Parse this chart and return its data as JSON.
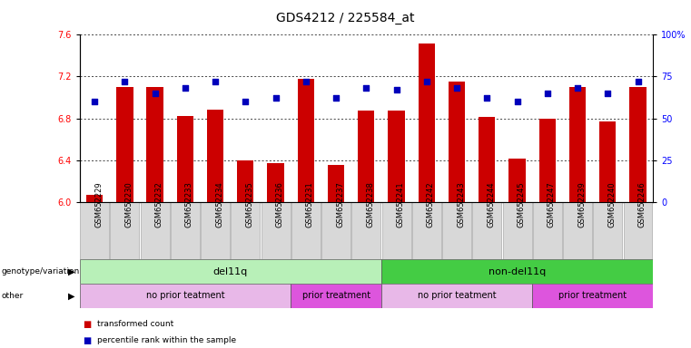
{
  "title": "GDS4212 / 225584_at",
  "samples": [
    "GSM652229",
    "GSM652230",
    "GSM652232",
    "GSM652233",
    "GSM652234",
    "GSM652235",
    "GSM652236",
    "GSM652231",
    "GSM652237",
    "GSM652238",
    "GSM652241",
    "GSM652242",
    "GSM652243",
    "GSM652244",
    "GSM652245",
    "GSM652247",
    "GSM652239",
    "GSM652240",
    "GSM652246"
  ],
  "bar_values": [
    6.07,
    7.1,
    7.1,
    6.82,
    6.88,
    6.4,
    6.37,
    7.18,
    6.35,
    6.87,
    6.87,
    7.52,
    7.15,
    6.81,
    6.41,
    6.8,
    7.1,
    6.77,
    7.1
  ],
  "pct_values": [
    60,
    72,
    65,
    68,
    72,
    60,
    62,
    72,
    62,
    68,
    67,
    72,
    68,
    62,
    60,
    65,
    68,
    65,
    72
  ],
  "ylim_left": [
    6.0,
    7.6
  ],
  "yticks_left": [
    6.0,
    6.4,
    6.8,
    7.2,
    7.6
  ],
  "yticks_right": [
    0,
    25,
    50,
    75,
    100
  ],
  "ytick_labels_right": [
    "0",
    "25",
    "50",
    "75",
    "100%"
  ],
  "bar_color": "#cc0000",
  "dot_color": "#0000bb",
  "genotype_groups": [
    {
      "label": "del11q",
      "start": 0,
      "end": 10,
      "color": "#b8f0b8"
    },
    {
      "label": "non-del11q",
      "start": 10,
      "end": 19,
      "color": "#44cc44"
    }
  ],
  "treatment_groups": [
    {
      "label": "no prior teatment",
      "start": 0,
      "end": 7,
      "color": "#e8b8e8"
    },
    {
      "label": "prior treatment",
      "start": 7,
      "end": 10,
      "color": "#dd55dd"
    },
    {
      "label": "no prior teatment",
      "start": 10,
      "end": 15,
      "color": "#e8b8e8"
    },
    {
      "label": "prior treatment",
      "start": 15,
      "end": 19,
      "color": "#dd55dd"
    }
  ],
  "genotype_label": "genotype/variation",
  "other_label": "other",
  "legend_items": [
    {
      "label": "transformed count",
      "color": "#cc0000"
    },
    {
      "label": "percentile rank within the sample",
      "color": "#0000bb"
    }
  ],
  "background_color": "#ffffff",
  "title_fontsize": 10,
  "tick_fontsize": 7,
  "label_fontsize": 8,
  "annot_fontsize": 8
}
